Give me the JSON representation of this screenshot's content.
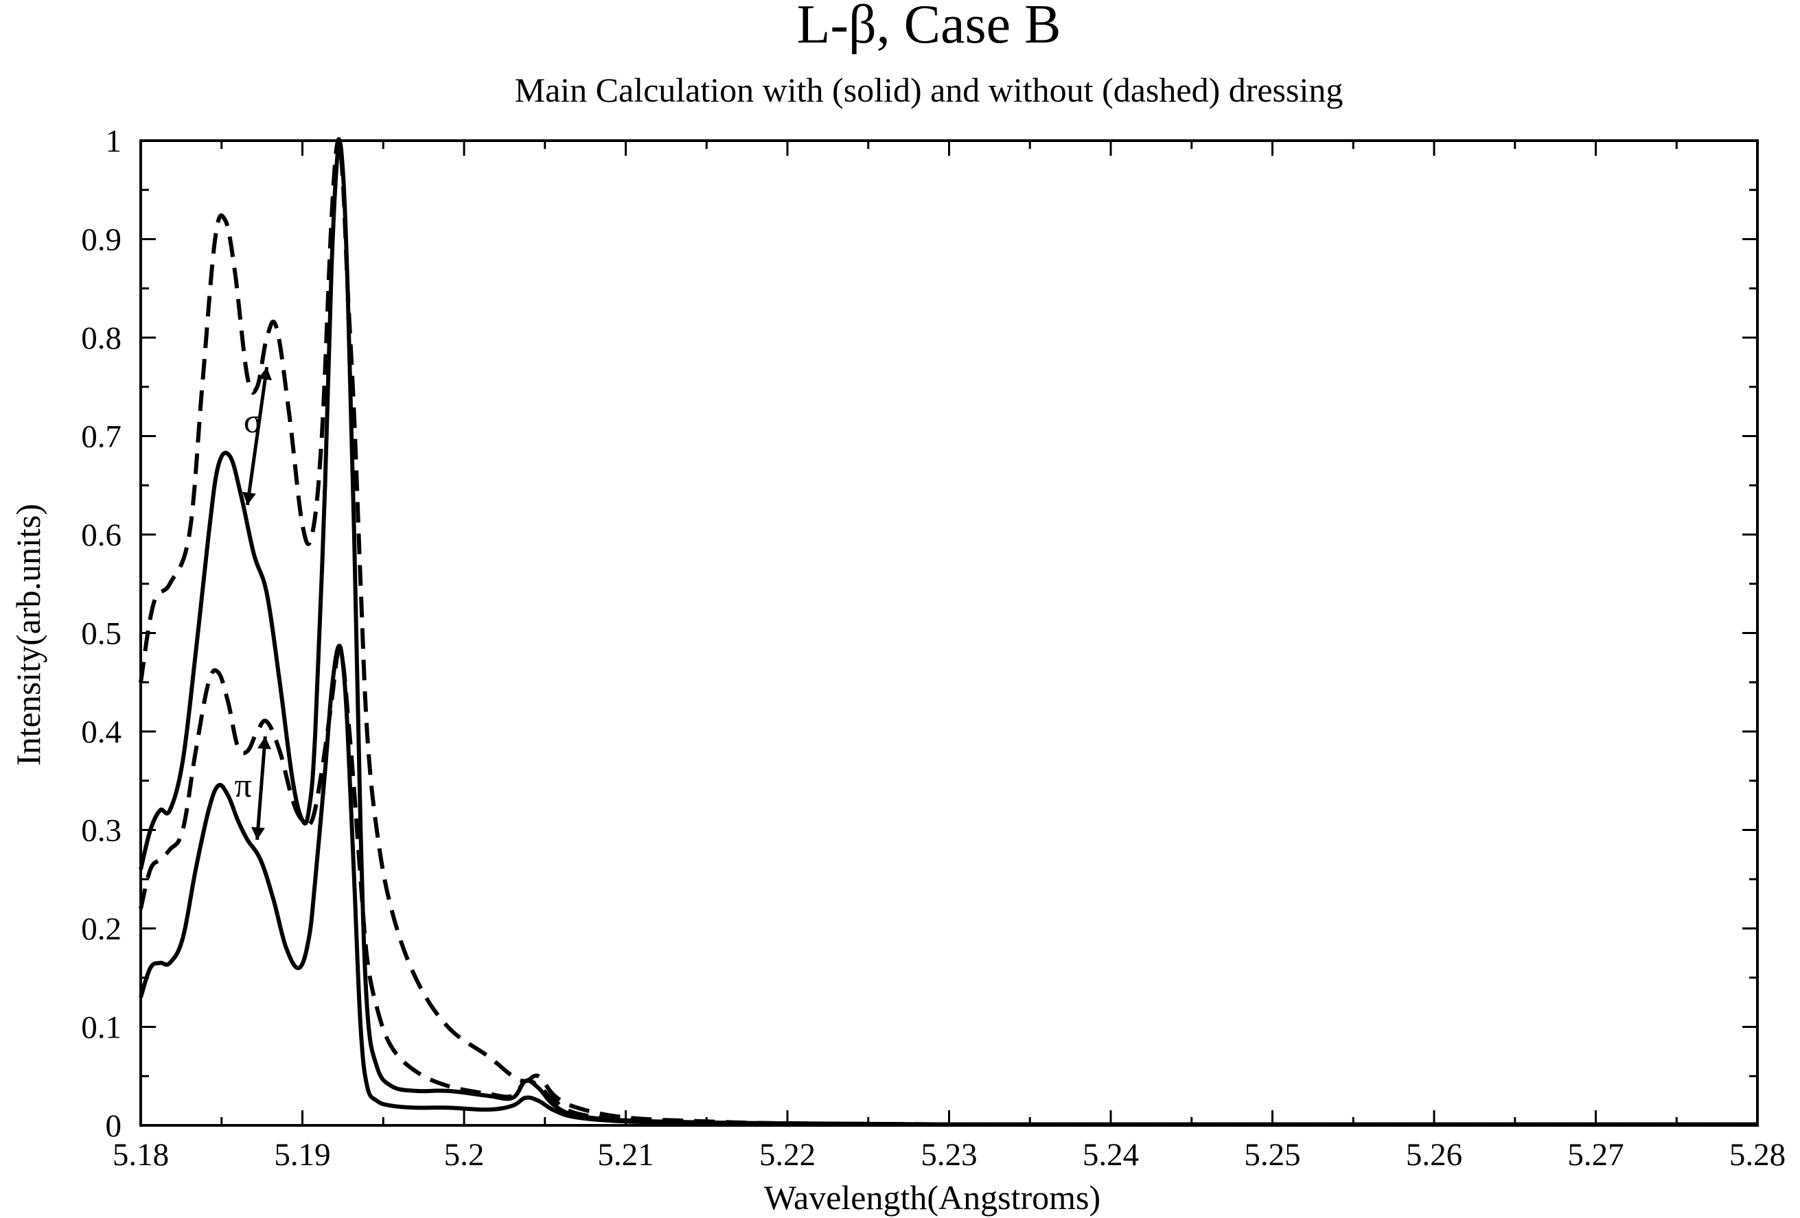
{
  "chart_data": {
    "type": "line",
    "title": "L-β, Case B",
    "subtitle": "Main Calculation with (solid) and without (dashed) dressing",
    "xlabel": "Wavelength(Angstroms)",
    "ylabel": "Intensity(arb.units)",
    "xlim": [
      5.18,
      5.28
    ],
    "ylim": [
      0,
      1
    ],
    "x_ticks": [
      "5.18",
      "5.19",
      "5.2",
      "5.21",
      "5.22",
      "5.23",
      "5.24",
      "5.25",
      "5.26",
      "5.27",
      "5.28"
    ],
    "y_ticks": [
      "0",
      "0.1",
      "0.2",
      "0.3",
      "0.4",
      "0.5",
      "0.6",
      "0.7",
      "0.8",
      "0.9",
      "1"
    ],
    "grid": false,
    "annotations": [
      {
        "text": "σ",
        "x": 5.1877,
        "y": 0.715
      },
      {
        "text": "π",
        "x": 5.1871,
        "y": 0.345
      }
    ],
    "series": [
      {
        "name": "sigma, without dressing",
        "style": "dashed",
        "x": [
          5.18,
          5.1808,
          5.1818,
          5.183,
          5.1838,
          5.1846,
          5.1852,
          5.1858,
          5.1866,
          5.1872,
          5.1878,
          5.1884,
          5.1892,
          5.19,
          5.1906,
          5.1912,
          5.1918,
          5.1922,
          5.1925,
          5.1928,
          5.1932,
          5.1936,
          5.194,
          5.1946,
          5.1955,
          5.197,
          5.199,
          5.2015,
          5.203,
          5.2038,
          5.2046,
          5.2056,
          5.207,
          5.21,
          5.215,
          5.22,
          5.23,
          5.24,
          5.25,
          5.26,
          5.27,
          5.28
        ],
        "y": [
          0.45,
          0.53,
          0.55,
          0.6,
          0.75,
          0.9,
          0.92,
          0.87,
          0.76,
          0.75,
          0.8,
          0.81,
          0.72,
          0.61,
          0.6,
          0.7,
          0.92,
          1.0,
          0.96,
          0.85,
          0.72,
          0.55,
          0.4,
          0.3,
          0.22,
          0.15,
          0.1,
          0.07,
          0.05,
          0.045,
          0.05,
          0.03,
          0.018,
          0.008,
          0.004,
          0.002,
          0.001,
          0.001,
          0.001,
          0.001,
          0.001,
          0.001
        ]
      },
      {
        "name": "sigma, with dressing",
        "style": "solid",
        "x": [
          5.18,
          5.1806,
          5.1812,
          5.1818,
          5.1826,
          5.1834,
          5.1842,
          5.1848,
          5.1855,
          5.1862,
          5.187,
          5.1878,
          5.1886,
          5.1894,
          5.19,
          5.1904,
          5.1908,
          5.1914,
          5.1918,
          5.1922,
          5.1925,
          5.1928,
          5.1932,
          5.1936,
          5.194,
          5.1946,
          5.1955,
          5.197,
          5.199,
          5.2015,
          5.203,
          5.2038,
          5.2046,
          5.2056,
          5.207,
          5.21,
          5.215,
          5.22,
          5.23,
          5.24,
          5.25,
          5.26,
          5.27,
          5.28
        ],
        "y": [
          0.26,
          0.3,
          0.32,
          0.32,
          0.37,
          0.48,
          0.6,
          0.67,
          0.68,
          0.64,
          0.58,
          0.54,
          0.45,
          0.35,
          0.31,
          0.32,
          0.4,
          0.65,
          0.87,
          0.99,
          0.97,
          0.85,
          0.6,
          0.3,
          0.12,
          0.06,
          0.04,
          0.035,
          0.035,
          0.03,
          0.028,
          0.045,
          0.038,
          0.02,
          0.01,
          0.005,
          0.003,
          0.002,
          0.001,
          0.001,
          0.001,
          0.001,
          0.001,
          0.001
        ]
      },
      {
        "name": "pi, without dressing",
        "style": "dashed",
        "x": [
          5.18,
          5.1806,
          5.1812,
          5.1818,
          5.1826,
          5.1834,
          5.1842,
          5.1848,
          5.1854,
          5.186,
          5.1866,
          5.1872,
          5.1878,
          5.1886,
          5.1894,
          5.19,
          5.1906,
          5.1912,
          5.1918,
          5.1922,
          5.1925,
          5.1928,
          5.1932,
          5.1936,
          5.194,
          5.1946,
          5.1955,
          5.197,
          5.199,
          5.2015,
          5.203,
          5.2038,
          5.2046,
          5.2056,
          5.207,
          5.21,
          5.215,
          5.22,
          5.23,
          5.24,
          5.25,
          5.26,
          5.27,
          5.28
        ],
        "y": [
          0.22,
          0.26,
          0.27,
          0.28,
          0.3,
          0.38,
          0.45,
          0.46,
          0.43,
          0.385,
          0.38,
          0.4,
          0.41,
          0.38,
          0.33,
          0.31,
          0.31,
          0.36,
          0.43,
          0.48,
          0.47,
          0.42,
          0.34,
          0.25,
          0.17,
          0.12,
          0.08,
          0.055,
          0.04,
          0.032,
          0.03,
          0.045,
          0.04,
          0.025,
          0.012,
          0.006,
          0.003,
          0.002,
          0.001,
          0.001,
          0.001,
          0.001,
          0.001,
          0.001
        ]
      },
      {
        "name": "pi, with dressing",
        "style": "solid",
        "x": [
          5.18,
          5.1806,
          5.1812,
          5.1818,
          5.1826,
          5.1834,
          5.1842,
          5.1848,
          5.1854,
          5.186,
          5.1866,
          5.1874,
          5.1882,
          5.189,
          5.1898,
          5.1904,
          5.1908,
          5.1914,
          5.1918,
          5.1922,
          5.1925,
          5.1928,
          5.1932,
          5.1936,
          5.194,
          5.1946,
          5.1955,
          5.197,
          5.199,
          5.2015,
          5.203,
          5.2038,
          5.2046,
          5.2056,
          5.207,
          5.21,
          5.215,
          5.22,
          5.23,
          5.24,
          5.25,
          5.26,
          5.27,
          5.28
        ],
        "y": [
          0.13,
          0.16,
          0.165,
          0.165,
          0.19,
          0.26,
          0.32,
          0.345,
          0.335,
          0.31,
          0.29,
          0.27,
          0.23,
          0.18,
          0.16,
          0.19,
          0.25,
          0.36,
          0.44,
          0.485,
          0.47,
          0.4,
          0.25,
          0.1,
          0.04,
          0.025,
          0.02,
          0.018,
          0.018,
          0.016,
          0.02,
          0.028,
          0.025,
          0.015,
          0.008,
          0.004,
          0.002,
          0.001,
          0.001,
          0.001,
          0.001,
          0.001,
          0.001,
          0.001
        ]
      }
    ]
  }
}
